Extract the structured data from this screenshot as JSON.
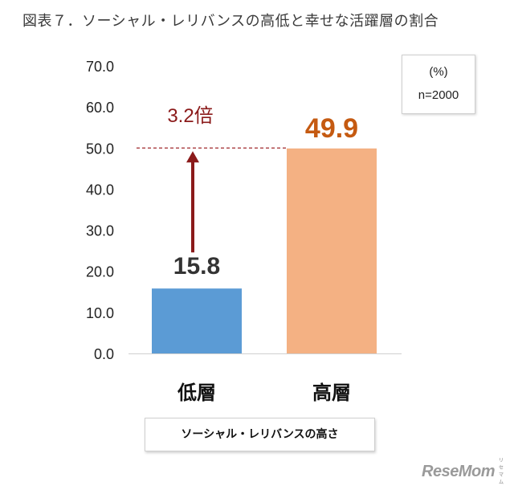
{
  "chart_data": {
    "type": "bar",
    "title": "図表７．ソーシャル・レリバンスの高低と幸せな活躍層の割合",
    "categories": [
      "低層",
      "高層"
    ],
    "values": [
      15.8,
      49.9
    ],
    "value_labels": [
      "15.8",
      "49.9"
    ],
    "bar_colors": [
      "#5b9bd5",
      "#f4b183"
    ],
    "value_label_colors": [
      "#333333",
      "#c55a11"
    ],
    "xlabel": "ソーシャル・レリバンスの高さ",
    "ylabel": "",
    "ylim": [
      0,
      70
    ],
    "yticks": [
      "0.0",
      "10.0",
      "20.0",
      "30.0",
      "40.0",
      "50.0",
      "60.0",
      "70.0"
    ],
    "grid": false,
    "legend": "none",
    "annotation": {
      "text": "3.2倍",
      "color": "#8b1a1a",
      "reference_line_value": 50,
      "arrow_from": 15.8,
      "arrow_to": 50
    }
  },
  "note": {
    "unit": "(%)",
    "sample": "n=2000"
  },
  "watermark": {
    "logo_text": "ReseMom",
    "kana": "リセマム"
  }
}
